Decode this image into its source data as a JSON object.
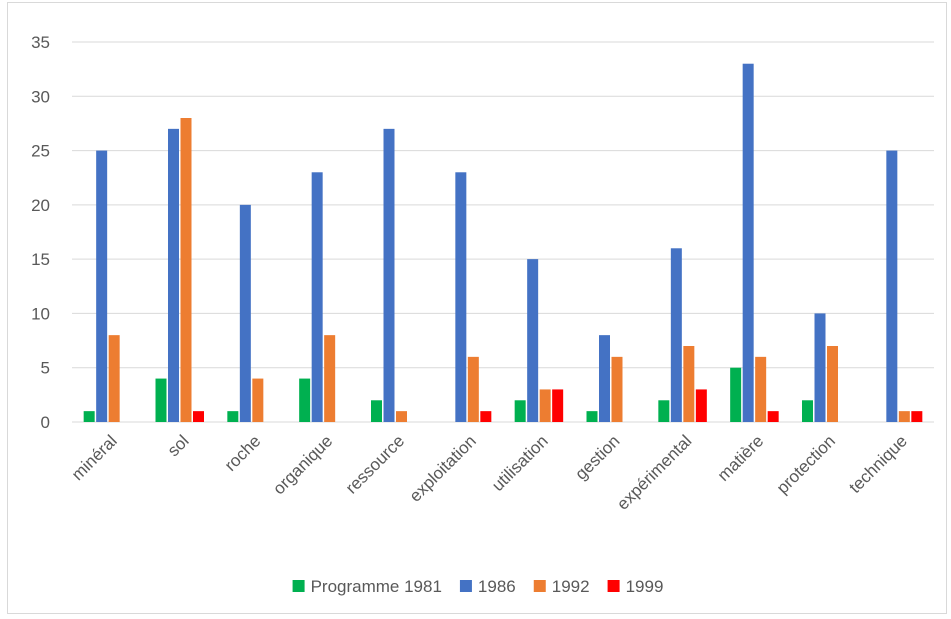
{
  "chart_data": {
    "type": "bar",
    "title": "",
    "xlabel": "",
    "ylabel": "",
    "ylim": [
      0,
      35
    ],
    "yticks": [
      0,
      5,
      10,
      15,
      20,
      25,
      30,
      35
    ],
    "grid": true,
    "legend_position": "bottom",
    "categories": [
      "minéral",
      "sol",
      "roche",
      "organique",
      "ressource",
      "exploitation",
      "utilisation",
      "gestion",
      "expérimental",
      "matière",
      "protection",
      "technique"
    ],
    "series": [
      {
        "name": "Programme 1981",
        "color": "#00b050",
        "values": [
          1,
          4,
          1,
          4,
          2,
          0,
          2,
          1,
          2,
          5,
          2,
          0
        ]
      },
      {
        "name": "1986",
        "color": "#4472c4",
        "values": [
          25,
          27,
          20,
          23,
          27,
          23,
          15,
          8,
          16,
          33,
          10,
          25
        ]
      },
      {
        "name": "1992",
        "color": "#ed7d31",
        "values": [
          8,
          28,
          4,
          8,
          1,
          6,
          3,
          6,
          7,
          6,
          7,
          1
        ]
      },
      {
        "name": "1999",
        "color": "#ff0000",
        "values": [
          0,
          1,
          0,
          0,
          0,
          1,
          3,
          0,
          3,
          1,
          0,
          1
        ]
      }
    ]
  }
}
